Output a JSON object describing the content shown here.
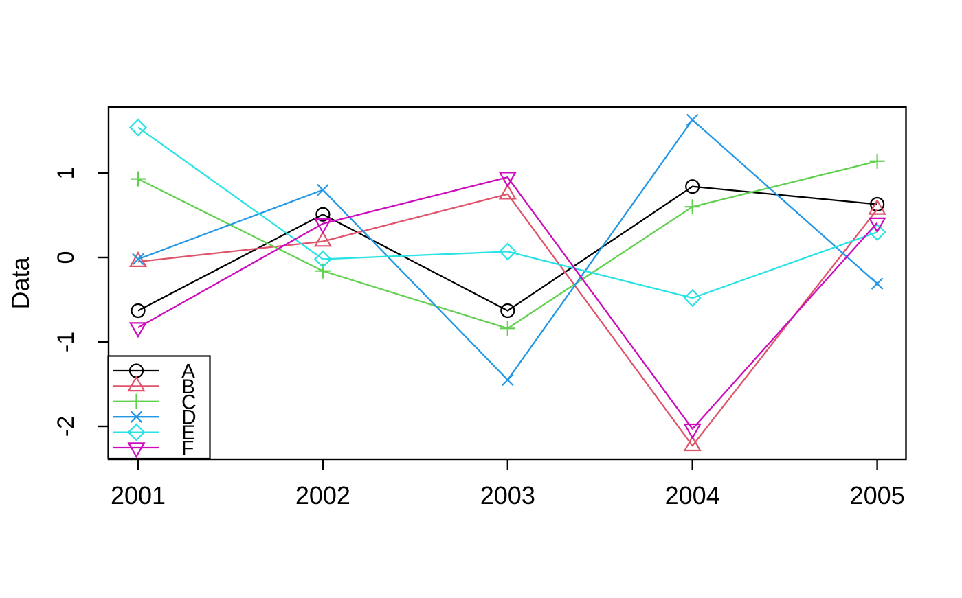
{
  "figure": {
    "title": "",
    "background": "#ffffff"
  },
  "chart_data": {
    "type": "line",
    "title": "",
    "xlabel": "",
    "ylabel": "Data",
    "x": [
      2001,
      2002,
      2003,
      2004,
      2005
    ],
    "xtick_labels": [
      "2001",
      "2002",
      "2003",
      "2004",
      "2005"
    ],
    "ytick_values": [
      1,
      0,
      -1,
      -2
    ],
    "ytick_labels": [
      "1",
      "0",
      "-1",
      "-2"
    ],
    "xlim": [
      2000.84,
      2005.16
    ],
    "ylim": [
      -2.39,
      1.78
    ],
    "grid": false,
    "frame_color": "#000000",
    "legend": {
      "position": "bottom-left",
      "entries": [
        "A",
        "B",
        "C",
        "D",
        "E",
        "F"
      ]
    },
    "series": [
      {
        "name": "A",
        "color": "#000000",
        "marker": "circle",
        "values": [
          -0.63,
          0.51,
          -0.63,
          0.84,
          0.63
        ]
      },
      {
        "name": "B",
        "color": "#DF536B",
        "marker": "triangle-up",
        "values": [
          -0.05,
          0.19,
          0.75,
          -2.23,
          0.57
        ]
      },
      {
        "name": "C",
        "color": "#61D04F",
        "marker": "plus",
        "values": [
          0.93,
          -0.16,
          -0.84,
          0.6,
          1.14
        ]
      },
      {
        "name": "D",
        "color": "#2297E6",
        "marker": "x",
        "values": [
          -0.02,
          0.8,
          -1.45,
          1.63,
          -0.31
        ]
      },
      {
        "name": "E",
        "color": "#28E2E5",
        "marker": "diamond",
        "values": [
          1.54,
          -0.02,
          0.07,
          -0.48,
          0.3
        ]
      },
      {
        "name": "F",
        "color": "#CD0BBC",
        "marker": "triangle-down",
        "values": [
          -0.83,
          0.4,
          0.95,
          -2.03,
          0.41
        ]
      }
    ]
  }
}
